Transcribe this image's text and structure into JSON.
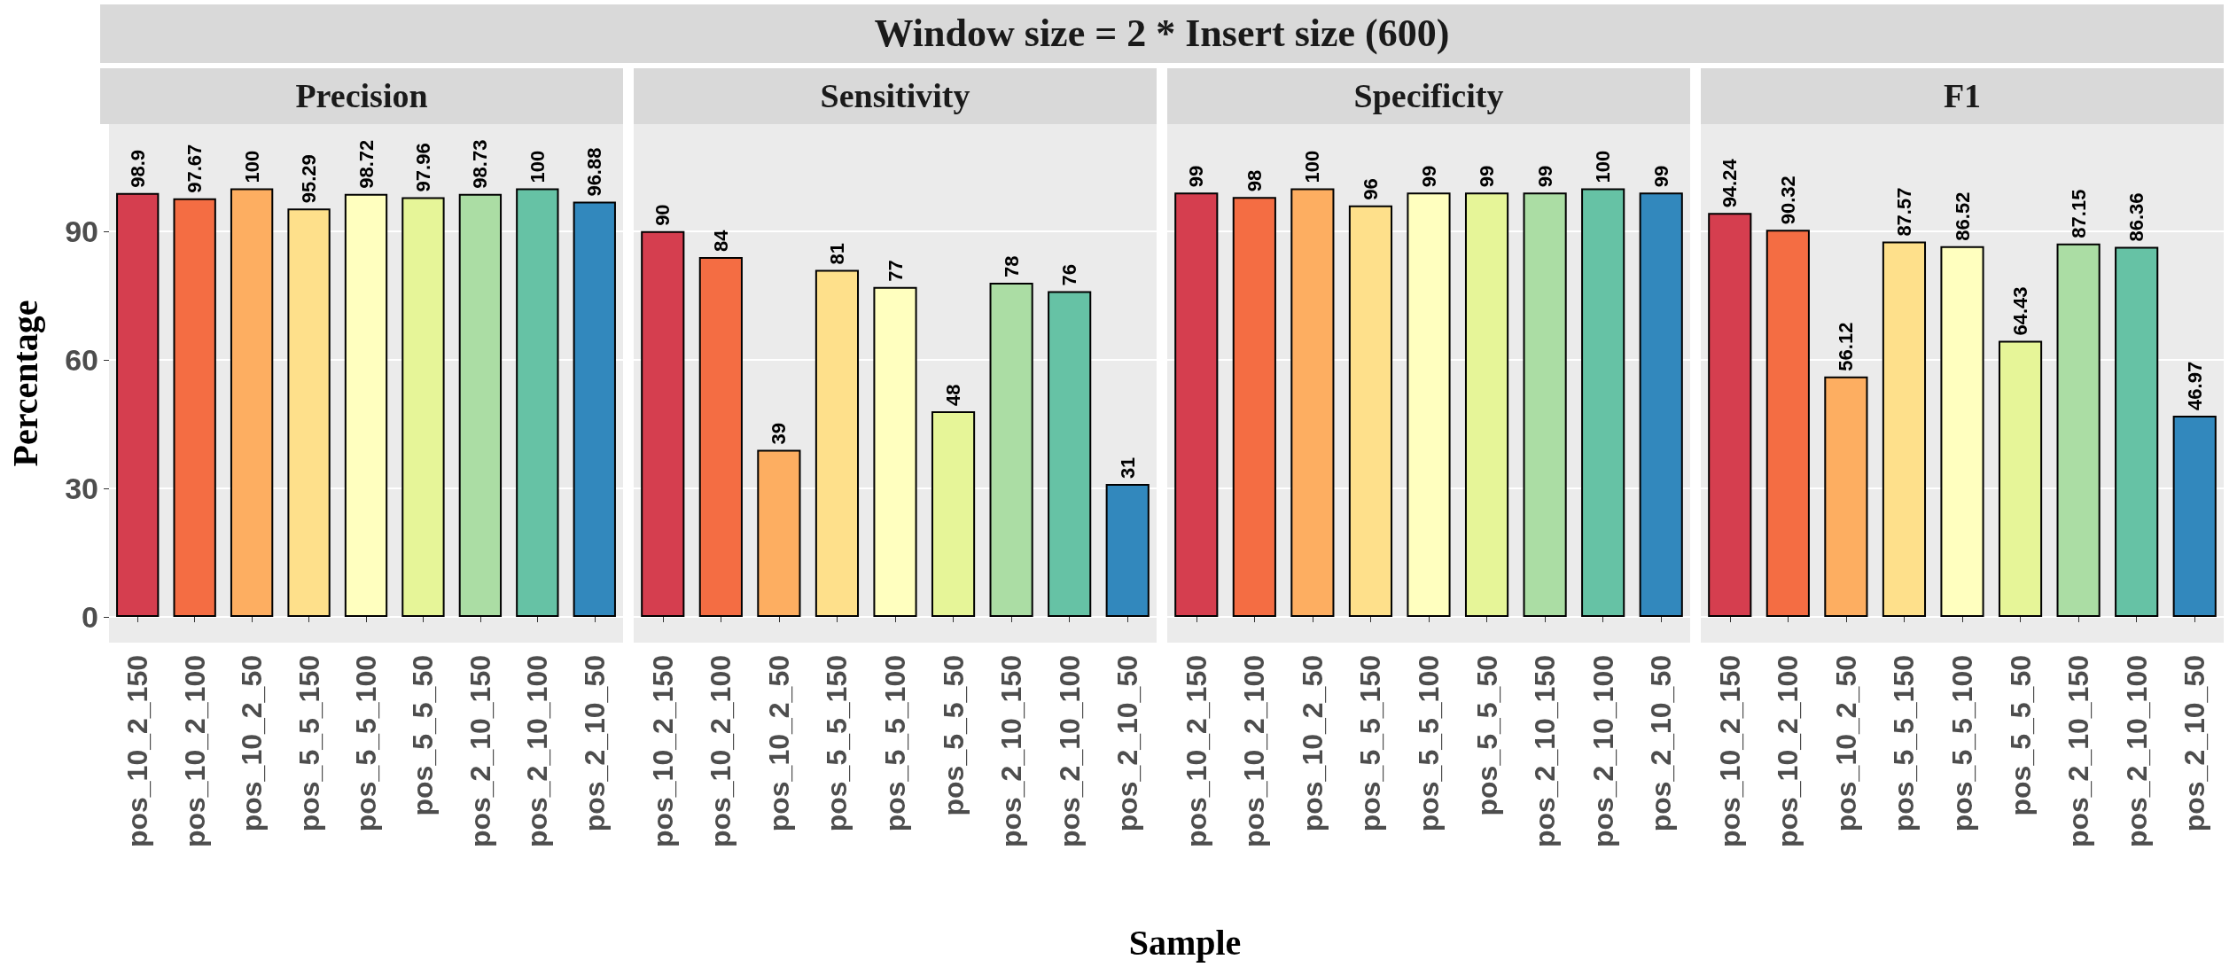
{
  "chart_data": [
    {
      "type": "bar",
      "title": "Precision",
      "annotations": [
        "Window size = 2 * Insert size (600)"
      ],
      "ylabel": "Percentage",
      "categories": [
        "pos_10_2_150",
        "pos_10_2_100",
        "pos_10_2_50",
        "pos_5_5_150",
        "pos_5_5_100",
        "pos_5_5_50",
        "pos_2_10_150",
        "pos_2_10_100",
        "pos_2_10_50"
      ],
      "values": [
        98.9,
        97.67,
        100,
        95.29,
        98.72,
        97.96,
        98.73,
        100,
        96.88
      ],
      "colors": [
        "#d53e4f",
        "#f46d43",
        "#fdae61",
        "#fee08b",
        "#ffffbf",
        "#e6f598",
        "#abdda4",
        "#66c2a5",
        "#3288bd"
      ],
      "ylim": [
        -6,
        115
      ],
      "yticks": [
        0,
        30,
        60,
        90
      ],
      "grid": "y",
      "data_labels": true
    },
    {
      "type": "bar",
      "title": "Sensitivity",
      "categories": [
        "pos_10_2_150",
        "pos_10_2_100",
        "pos_10_2_50",
        "pos_5_5_150",
        "pos_5_5_100",
        "pos_5_5_50",
        "pos_2_10_150",
        "pos_2_10_100",
        "pos_2_10_50"
      ],
      "values": [
        90,
        84,
        39,
        81,
        77,
        48,
        78,
        76,
        31
      ],
      "colors": [
        "#d53e4f",
        "#f46d43",
        "#fdae61",
        "#fee08b",
        "#ffffbf",
        "#e6f598",
        "#abdda4",
        "#66c2a5",
        "#3288bd"
      ],
      "ylim": [
        -6,
        115
      ],
      "yticks": [
        0,
        30,
        60,
        90
      ],
      "grid": "y",
      "data_labels": true,
      "tick_labels": "x"
    },
    {
      "type": "bar",
      "title": "Specificity",
      "xlabel": "Sample",
      "categories": [
        "pos_10_2_150",
        "pos_10_2_100",
        "pos_10_2_50",
        "pos_5_5_150",
        "pos_5_5_100",
        "pos_5_5_50",
        "pos_2_10_150",
        "pos_2_10_100",
        "pos_2_10_50"
      ],
      "values": [
        99,
        98,
        100,
        96,
        99,
        99,
        99,
        100,
        99
      ],
      "colors": [
        "#d53e4f",
        "#f46d43",
        "#fdae61",
        "#fee08b",
        "#ffffbf",
        "#e6f598",
        "#abdda4",
        "#66c2a5",
        "#3288bd"
      ],
      "ylim": [
        -6,
        115
      ],
      "yticks": [
        0,
        30,
        60,
        90
      ],
      "grid": "y",
      "data_labels": true,
      "tick_labels": "x"
    },
    {
      "type": "bar",
      "title": "F1",
      "categories": [
        "pos_10_2_150",
        "pos_10_2_100",
        "pos_10_2_50",
        "pos_5_5_150",
        "pos_5_5_100",
        "pos_5_5_50",
        "pos_2_10_150",
        "pos_2_10_100",
        "pos_2_10_50"
      ],
      "values": [
        94.24,
        90.32,
        56.12,
        87.57,
        86.52,
        64.43,
        87.15,
        86.36,
        46.97
      ],
      "colors": [
        "#d53e4f",
        "#f46d43",
        "#fdae61",
        "#fee08b",
        "#ffffbf",
        "#e6f598",
        "#abdda4",
        "#66c2a5",
        "#3288bd"
      ],
      "ylim": [
        -6,
        115
      ],
      "yticks": [
        0,
        30,
        60,
        90
      ],
      "grid": "y",
      "data_labels": true,
      "tick_labels": "x"
    }
  ]
}
